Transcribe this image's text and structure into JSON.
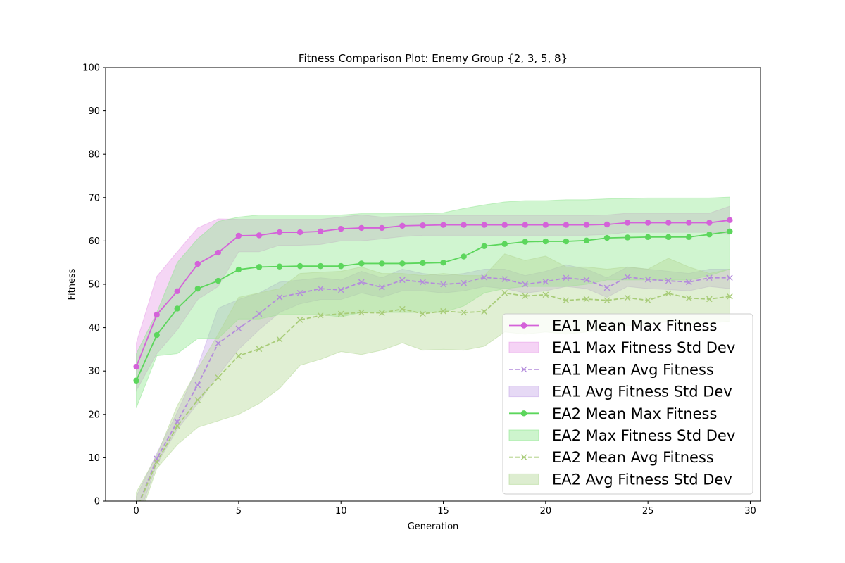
{
  "chart_data": {
    "type": "line",
    "title": "Fitness Comparison Plot: Enemy Group {2, 3, 5, 8}",
    "xlabel": "Generation",
    "ylabel": "Fitness",
    "xlim": [
      -1.5,
      30.5
    ],
    "ylim": [
      0,
      100
    ],
    "xticks": [
      0,
      5,
      10,
      15,
      20,
      25,
      30
    ],
    "yticks": [
      0,
      10,
      20,
      30,
      40,
      50,
      60,
      70,
      80,
      90,
      100
    ],
    "grid": false,
    "legend_position": "lower-right",
    "x": [
      0,
      1,
      2,
      3,
      4,
      5,
      6,
      7,
      8,
      9,
      10,
      11,
      12,
      13,
      14,
      15,
      16,
      17,
      18,
      19,
      20,
      21,
      22,
      23,
      24,
      25,
      26,
      27,
      28,
      29
    ],
    "series": [
      {
        "name": "EA1 Mean Max Fitness",
        "color": "#d462d9",
        "style": "solid",
        "marker": "circle",
        "values": [
          31.0,
          43.0,
          48.4,
          54.7,
          57.3,
          61.2,
          61.3,
          62.0,
          62.0,
          62.2,
          62.8,
          63.0,
          63.0,
          63.5,
          63.6,
          63.7,
          63.7,
          63.7,
          63.7,
          63.7,
          63.7,
          63.7,
          63.7,
          63.8,
          64.2,
          64.2,
          64.2,
          64.2,
          64.2,
          64.8
        ],
        "band": {
          "name": "EA1 Max Fitness Std Dev",
          "color": "#e89ee8",
          "lower": [
            25.5,
            34.0,
            39.5,
            46.5,
            49.5,
            57.5,
            57.5,
            59.0,
            59.0,
            59.2,
            60.0,
            60.0,
            60.5,
            61.0,
            61.3,
            61.3,
            61.3,
            61.3,
            61.3,
            61.3,
            61.3,
            61.3,
            61.3,
            61.5,
            62.0,
            62.0,
            62.0,
            62.0,
            62.0,
            61.5
          ],
          "upper": [
            36.5,
            51.8,
            57.5,
            63.0,
            65.1,
            65.0,
            65.0,
            65.0,
            65.0,
            65.0,
            65.5,
            66.0,
            65.5,
            65.7,
            65.8,
            65.9,
            65.9,
            65.9,
            65.9,
            65.9,
            65.9,
            65.9,
            65.9,
            66.0,
            66.4,
            66.4,
            66.4,
            66.4,
            66.4,
            68.0
          ]
        }
      },
      {
        "name": "EA1 Mean Avg Fitness",
        "color": "#b48cdc",
        "style": "dashed",
        "marker": "x",
        "values": [
          -2.0,
          9.8,
          18.3,
          26.8,
          36.4,
          39.8,
          43.2,
          47.0,
          48.0,
          49.0,
          48.7,
          50.5,
          49.3,
          51.0,
          50.5,
          50.0,
          50.3,
          51.6,
          51.2,
          50.0,
          50.6,
          51.5,
          51.0,
          49.2,
          51.7,
          51.1,
          50.8,
          50.5,
          51.5,
          51.5
        ],
        "band": {
          "name": "EA1 Avg Fitness Std Dev",
          "color": "#c8aae8",
          "lower": [
            -5.0,
            8.5,
            16.5,
            22.5,
            29.0,
            35.0,
            39.5,
            43.5,
            45.5,
            46.5,
            46.5,
            48.0,
            47.0,
            48.5,
            48.5,
            48.0,
            48.5,
            49.5,
            49.0,
            48.0,
            48.5,
            49.5,
            49.0,
            47.0,
            49.5,
            49.0,
            48.8,
            48.5,
            49.5,
            49.0
          ],
          "upper": [
            1.0,
            11.0,
            20.5,
            31.0,
            44.5,
            46.5,
            48.0,
            50.5,
            51.0,
            51.5,
            51.0,
            53.0,
            51.5,
            53.5,
            52.5,
            52.0,
            52.5,
            53.5,
            53.5,
            52.0,
            53.0,
            54.5,
            53.5,
            51.5,
            54.0,
            53.5,
            53.0,
            52.5,
            53.5,
            53.5
          ]
        }
      },
      {
        "name": "EA2 Mean Max Fitness",
        "color": "#5cd65c",
        "style": "solid",
        "marker": "circle",
        "values": [
          27.8,
          38.3,
          44.4,
          49.0,
          50.8,
          53.4,
          54.0,
          54.1,
          54.2,
          54.2,
          54.2,
          54.8,
          54.8,
          54.8,
          54.9,
          55.0,
          56.4,
          58.8,
          59.3,
          59.8,
          59.9,
          59.9,
          60.1,
          60.7,
          60.8,
          60.9,
          60.9,
          60.9,
          61.5,
          62.2
        ],
        "band": {
          "name": "EA2 Max Fitness Std Dev",
          "color": "#90e690",
          "lower": [
            21.5,
            33.5,
            34.0,
            37.5,
            37.5,
            42.0,
            42.0,
            43.0,
            43.0,
            43.0,
            42.5,
            43.5,
            43.5,
            43.5,
            43.5,
            43.5,
            45.0,
            48.0,
            49.0,
            49.5,
            49.5,
            49.5,
            50.0,
            51.0,
            51.0,
            51.0,
            51.0,
            51.0,
            52.0,
            53.5
          ],
          "upper": [
            34.0,
            43.5,
            55.0,
            60.5,
            64.5,
            65.5,
            66.0,
            66.0,
            66.0,
            66.0,
            66.0,
            66.3,
            66.3,
            66.3,
            66.3,
            66.5,
            67.5,
            68.3,
            69.0,
            69.3,
            69.3,
            69.5,
            69.5,
            69.7,
            69.8,
            69.9,
            69.9,
            69.9,
            69.9,
            70.1
          ]
        }
      },
      {
        "name": "EA2 Mean Avg Fitness",
        "color": "#a8cc78",
        "style": "dashed",
        "marker": "x",
        "values": [
          -2.0,
          9.0,
          17.3,
          23.3,
          28.5,
          33.5,
          35.1,
          37.3,
          41.8,
          42.8,
          43.2,
          43.5,
          43.4,
          44.3,
          43.2,
          43.8,
          43.5,
          43.7,
          48.0,
          47.3,
          47.6,
          46.3,
          46.6,
          46.3,
          46.9,
          46.3,
          47.9,
          46.8,
          46.6,
          47.2
        ],
        "band": {
          "name": "EA2 Avg Fitness Std Dev",
          "color": "#b4d896",
          "lower": [
            -6.0,
            7.5,
            13.0,
            17.0,
            18.5,
            20.0,
            22.5,
            26.0,
            31.3,
            32.7,
            34.5,
            33.8,
            34.8,
            36.5,
            34.8,
            35.0,
            34.8,
            35.7,
            39.0,
            38.5,
            39.0,
            38.5,
            39.0,
            39.5,
            40.5,
            40.5,
            41.5,
            41.0,
            41.0,
            41.5
          ],
          "upper": [
            2.0,
            10.5,
            22.0,
            30.5,
            38.5,
            47.0,
            48.0,
            49.0,
            52.5,
            52.8,
            53.0,
            54.0,
            52.5,
            52.5,
            52.0,
            52.5,
            52.0,
            52.0,
            57.0,
            55.5,
            56.5,
            54.0,
            54.0,
            53.5,
            54.0,
            53.5,
            56.0,
            54.0,
            52.5,
            53.5
          ]
        }
      }
    ],
    "legend": [
      {
        "label": "EA1 Mean Max Fitness",
        "kind": "line",
        "series": 0
      },
      {
        "label": "EA1 Max Fitness Std Dev",
        "kind": "band",
        "series": 0
      },
      {
        "label": "EA1 Mean Avg Fitness",
        "kind": "line",
        "series": 1
      },
      {
        "label": "EA1 Avg Fitness Std Dev",
        "kind": "band",
        "series": 1
      },
      {
        "label": "EA2 Mean Max Fitness",
        "kind": "line",
        "series": 2
      },
      {
        "label": "EA2 Max Fitness Std Dev",
        "kind": "band",
        "series": 2
      },
      {
        "label": "EA2 Mean Avg Fitness",
        "kind": "line",
        "series": 3
      },
      {
        "label": "EA2 Avg Fitness Std Dev",
        "kind": "band",
        "series": 3
      }
    ]
  }
}
